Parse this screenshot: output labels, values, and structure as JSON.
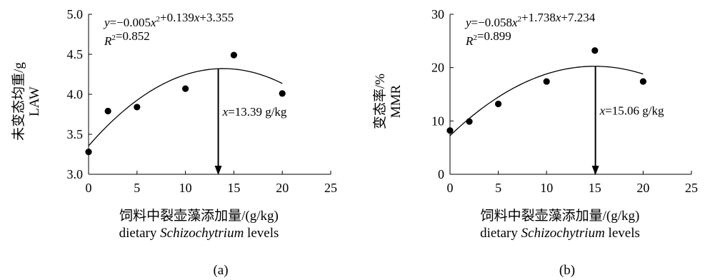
{
  "chart_data": [
    {
      "type": "scatter",
      "panel_label": "(a)",
      "xlabel_cn": "饲料中裂壶藻添加量/(g/kg)",
      "xlabel_en_prefix": "dietary ",
      "xlabel_en_italic": "Schizochytrium",
      "xlabel_en_suffix": " levels",
      "ylabel_cn": "未变态均重/g",
      "ylabel_en": "LAW",
      "xlim": [
        0,
        25
      ],
      "ylim": [
        3.0,
        5.0
      ],
      "xticks": [
        "0",
        "5",
        "10",
        "15",
        "20",
        "25"
      ],
      "xtick_values": [
        0,
        5,
        10,
        15,
        20,
        25
      ],
      "yticks": [
        "3.0",
        "3.5",
        "4.0",
        "4.5",
        "5.0"
      ],
      "ytick_values": [
        3.0,
        3.5,
        4.0,
        4.5,
        5.0
      ],
      "grid": false,
      "points": {
        "x": [
          0,
          2,
          5,
          10,
          15,
          20
        ],
        "y": [
          3.28,
          3.79,
          3.84,
          4.07,
          4.49,
          4.01
        ]
      },
      "fit": {
        "a": -0.005,
        "b": 0.139,
        "c": 3.355,
        "x_range": [
          0,
          20
        ]
      },
      "equation_text": "y=−0.005x²+0.139x+3.355",
      "r2_text": "R²=0.852",
      "optimum_x": 13.39,
      "optimum_text": "x=13.39 g/kg"
    },
    {
      "type": "scatter",
      "panel_label": "(b)",
      "xlabel_cn": "饲料中裂壶藻添加量/(g/kg)",
      "xlabel_en_prefix": "dietary ",
      "xlabel_en_italic": "Schizochytrium",
      "xlabel_en_suffix": " levels",
      "ylabel_cn": "变态率/%",
      "ylabel_en": "MMR",
      "xlim": [
        0,
        25
      ],
      "ylim": [
        0,
        30
      ],
      "xticks": [
        "0",
        "5",
        "10",
        "15",
        "20",
        "25"
      ],
      "xtick_values": [
        0,
        5,
        10,
        15,
        20,
        25
      ],
      "yticks": [
        "0",
        "10",
        "20",
        "30"
      ],
      "ytick_values": [
        0,
        10,
        20,
        30
      ],
      "grid": false,
      "points": {
        "x": [
          0,
          2,
          5,
          10,
          15,
          20
        ],
        "y": [
          8.2,
          9.9,
          13.2,
          17.4,
          23.2,
          17.4
        ]
      },
      "fit": {
        "a": -0.058,
        "b": 1.738,
        "c": 7.234,
        "x_range": [
          0,
          20
        ]
      },
      "equation_text": "y=−0.058x²+1.738x+7.234",
      "r2_text": "R²=0.899",
      "optimum_x": 15.06,
      "optimum_text": "x=15.06 g/kg"
    }
  ]
}
